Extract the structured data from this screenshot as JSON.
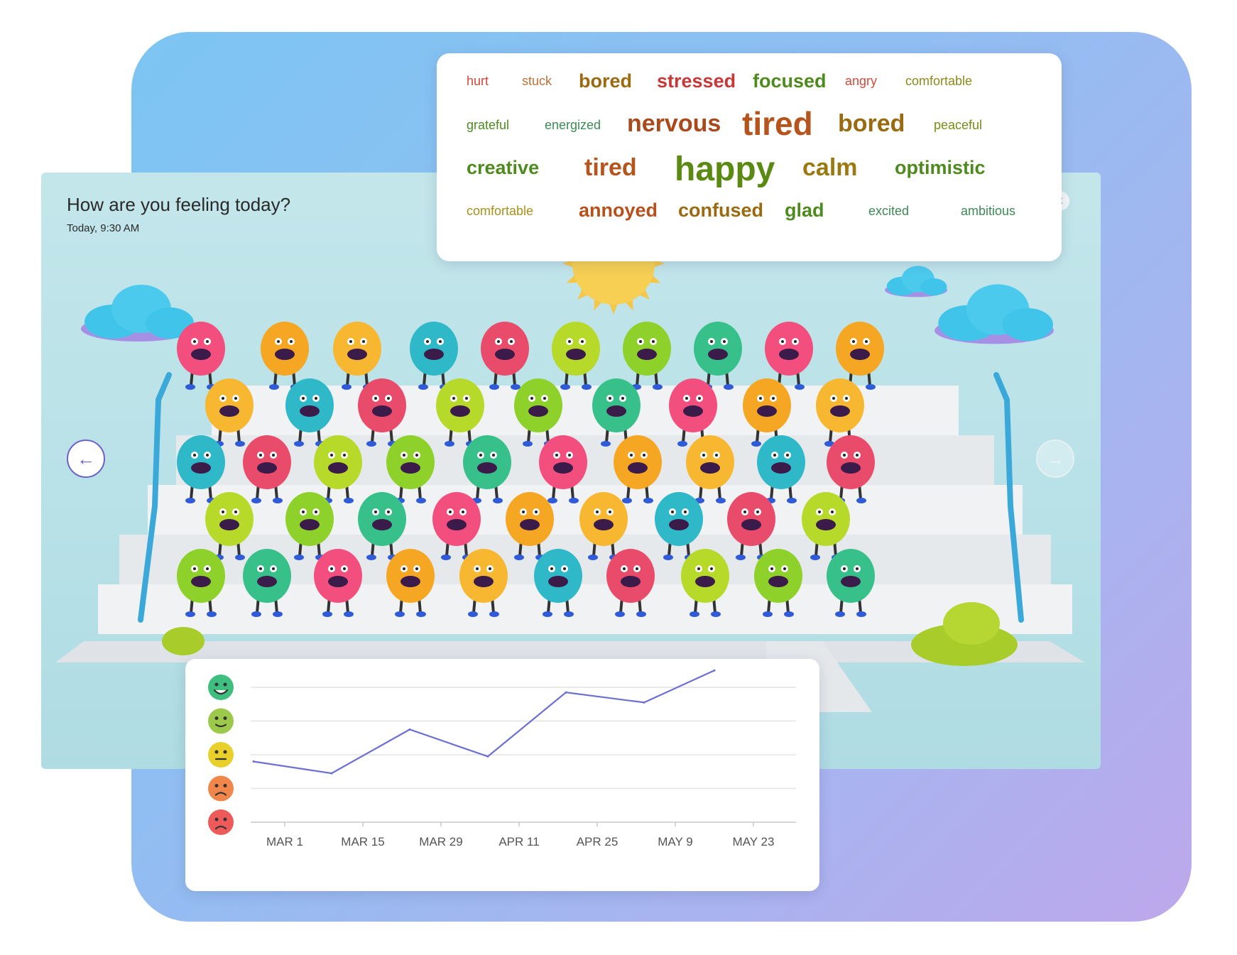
{
  "panel": {
    "title": "How are you feeling today?",
    "timestamp": "Today, 9:30 AM"
  },
  "navigation": {
    "prev_icon": "arrow-left-icon",
    "next_icon": "arrow-right-icon",
    "prev_glyph": "←",
    "next_glyph": "→",
    "close_glyph": "×"
  },
  "word_cloud": {
    "rows": [
      [
        {
          "text": "hurt",
          "color": "#d1493a"
        },
        {
          "text": "stuck",
          "color": "#c0703a"
        },
        {
          "text": "bored",
          "color": "#9a6a10"
        },
        {
          "text": "stressed",
          "color": "#c73838"
        },
        {
          "text": "focused",
          "color": "#4e8a1e"
        },
        {
          "text": "angry",
          "color": "#d54a3c"
        },
        {
          "text": "comfortable",
          "color": "#8a8a1c"
        }
      ],
      [
        {
          "text": "grateful",
          "color": "#4e8a22"
        },
        {
          "text": "energized",
          "color": "#3c8a55"
        },
        {
          "text": "nervous",
          "color": "#a84a1c"
        },
        {
          "text": "tired",
          "color": "#b5541c"
        },
        {
          "text": "bored",
          "color": "#9a6a10"
        },
        {
          "text": "peaceful",
          "color": "#7a8a18"
        }
      ],
      [
        {
          "text": "creative",
          "color": "#4e8a1e"
        },
        {
          "text": "tired",
          "color": "#b5541c"
        },
        {
          "text": "happy",
          "color": "#5a8a12"
        },
        {
          "text": "calm",
          "color": "#9a7a10"
        },
        {
          "text": "optimistic",
          "color": "#4e8a1e"
        }
      ],
      [
        {
          "text": "comfortable",
          "color": "#a8901a"
        },
        {
          "text": "annoyed",
          "color": "#b8501c"
        },
        {
          "text": "confused",
          "color": "#9a6a10"
        },
        {
          "text": "glad",
          "color": "#4e8a1e"
        },
        {
          "text": "excited",
          "color": "#3c8a55"
        },
        {
          "text": "ambitious",
          "color": "#3c8a55"
        }
      ]
    ]
  },
  "mood_scale": [
    {
      "icon": "very-happy-face-icon",
      "color": "#3fbf7f"
    },
    {
      "icon": "happy-face-icon",
      "color": "#9dc94a"
    },
    {
      "icon": "neutral-face-icon",
      "color": "#e8cf2a"
    },
    {
      "icon": "sad-face-icon",
      "color": "#f0864a"
    },
    {
      "icon": "angry-face-icon",
      "color": "#ee5a5a"
    }
  ],
  "chart_data": {
    "type": "line",
    "title": "",
    "xlabel": "",
    "ylabel": "",
    "x_tick_labels": [
      "MAR 1",
      "MAR 15",
      "MAR 29",
      "APR 11",
      "APR 25",
      "MAY 9",
      "MAY 23"
    ],
    "y_scale": [
      "angry",
      "sad",
      "neutral",
      "happy",
      "very happy"
    ],
    "ylim": [
      1,
      5
    ],
    "grid": true,
    "line_color": "#6b6fd0",
    "series": [
      {
        "x_index": [
          -0.4,
          0.6,
          1.6,
          2.6,
          3.6,
          4.6,
          5.5
        ],
        "values": [
          2.8,
          2.45,
          3.75,
          2.95,
          4.85,
          4.55,
          5.5
        ]
      }
    ]
  },
  "colors": {
    "accent": "#6b63c7",
    "panel_bg": "#bde3e8"
  }
}
